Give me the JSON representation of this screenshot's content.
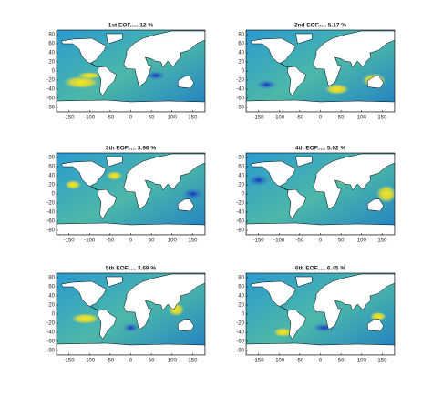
{
  "axes": {
    "xlim": [
      -180,
      180
    ],
    "ylim": [
      -90,
      90
    ],
    "xticks": [
      -150,
      -100,
      -50,
      0,
      50,
      100,
      150
    ],
    "yticks": [
      80,
      60,
      40,
      20,
      0,
      -20,
      -40,
      -60,
      -80
    ]
  },
  "panels": [
    {
      "title": "1st EOF..... 12 %"
    },
    {
      "title": "2nd EOF..... 5.17 %"
    },
    {
      "title": "3th EOF..... 3.96 %"
    },
    {
      "title": "4th EOF..... 5.02 %"
    },
    {
      "title": "5th EOF..... 3.69 %"
    },
    {
      "title": "6th EOF..... 6.45 %"
    }
  ]
}
